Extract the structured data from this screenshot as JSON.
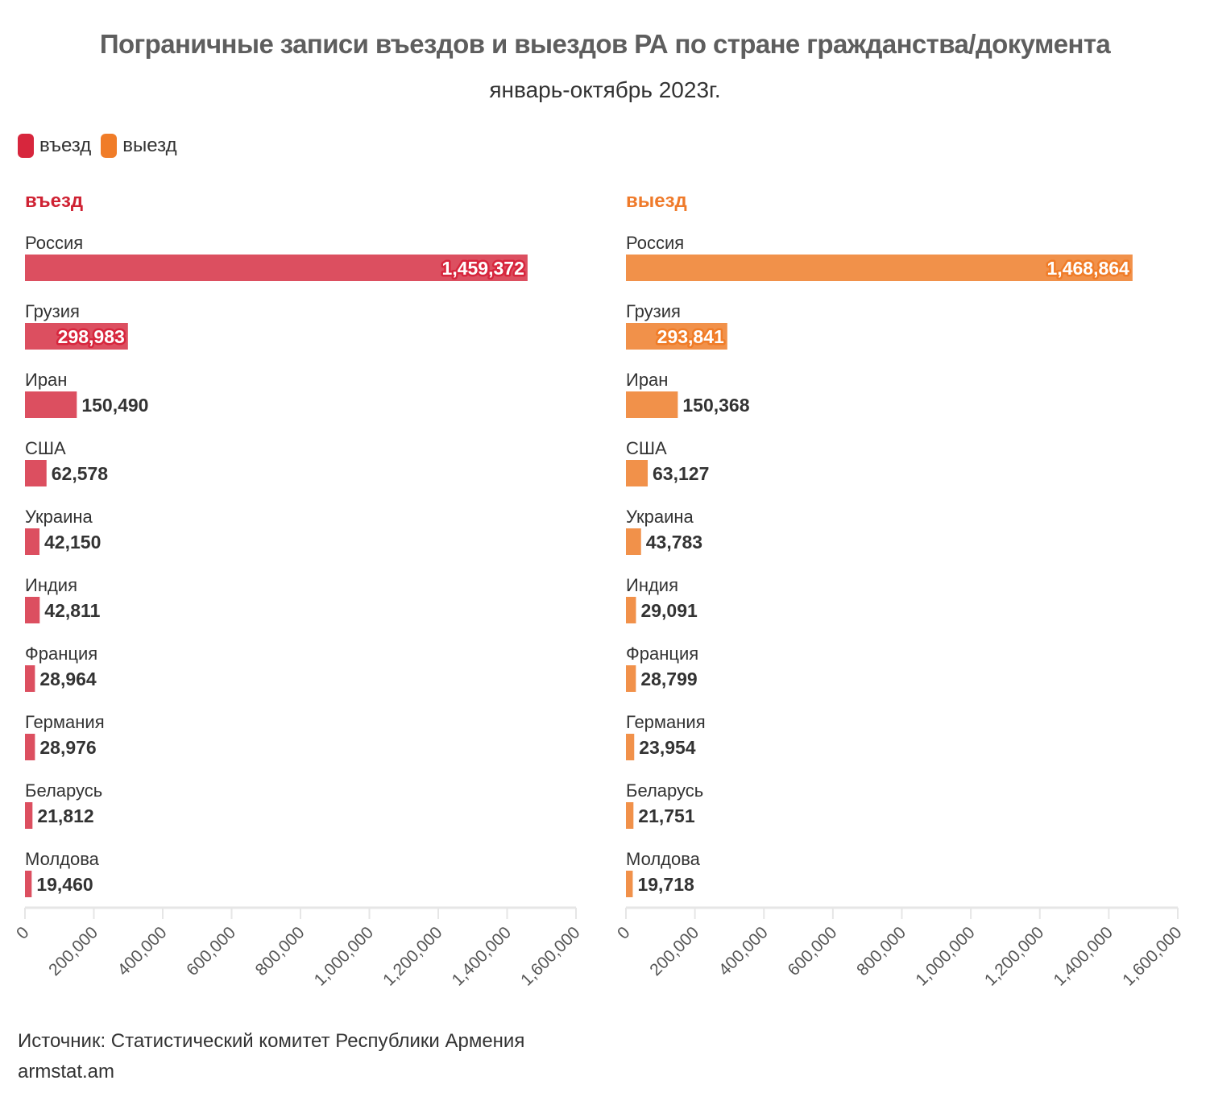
{
  "title": "Пограничные записи въездов и выездов РА по стране гражданства/документа",
  "subtitle": "январь-октябрь 2023г.",
  "legend": [
    {
      "label": "въезд",
      "color": "#d7263d"
    },
    {
      "label": "выезд",
      "color": "#f07c28"
    }
  ],
  "footer": {
    "source": "Источник: Статистический комитет Республики Армения",
    "site": "armstat.am"
  },
  "chart_data": [
    {
      "type": "bar",
      "orientation": "horizontal",
      "title": "въезд",
      "title_color": "#cf2233",
      "bar_color": "#dc4f60",
      "label_outline_color": "#d7263d",
      "categories": [
        "Россия",
        "Грузия",
        "Иран",
        "США",
        "Украина",
        "Индия",
        "Франция",
        "Германия",
        "Беларусь",
        "Молдова"
      ],
      "values": [
        1459372,
        298983,
        150490,
        62578,
        42150,
        42811,
        28964,
        28976,
        21812,
        19460
      ],
      "value_labels": [
        "1,459,372",
        "298,983",
        "150,490",
        "62,578",
        "42,150",
        "42,811",
        "28,964",
        "28,976",
        "21,812",
        "19,460"
      ],
      "xlim": [
        0,
        1600000
      ],
      "x_ticks": [
        0,
        200000,
        400000,
        600000,
        800000,
        1000000,
        1200000,
        1400000,
        1600000
      ],
      "x_tick_labels": [
        "0",
        "200,000",
        "400,000",
        "600,000",
        "800,000",
        "1,000,000",
        "1,200,000",
        "1,400,000",
        "1,600,000"
      ],
      "grid": false
    },
    {
      "type": "bar",
      "orientation": "horizontal",
      "title": "выезд",
      "title_color": "#ef7a2a",
      "bar_color": "#f1914a",
      "label_outline_color": "#f07c28",
      "categories": [
        "Россия",
        "Грузия",
        "Иран",
        "США",
        "Украина",
        "Индия",
        "Франция",
        "Германия",
        "Беларусь",
        "Молдова"
      ],
      "values": [
        1468864,
        293841,
        150368,
        63127,
        43783,
        29091,
        28799,
        23954,
        21751,
        19718
      ],
      "value_labels": [
        "1,468,864",
        "293,841",
        "150,368",
        "63,127",
        "43,783",
        "29,091",
        "28,799",
        "23,954",
        "21,751",
        "19,718"
      ],
      "xlim": [
        0,
        1600000
      ],
      "x_ticks": [
        0,
        200000,
        400000,
        600000,
        800000,
        1000000,
        1200000,
        1400000,
        1600000
      ],
      "x_tick_labels": [
        "0",
        "200,000",
        "400,000",
        "600,000",
        "800,000",
        "1,000,000",
        "1,200,000",
        "1,400,000",
        "1,600,000"
      ],
      "grid": false
    }
  ]
}
